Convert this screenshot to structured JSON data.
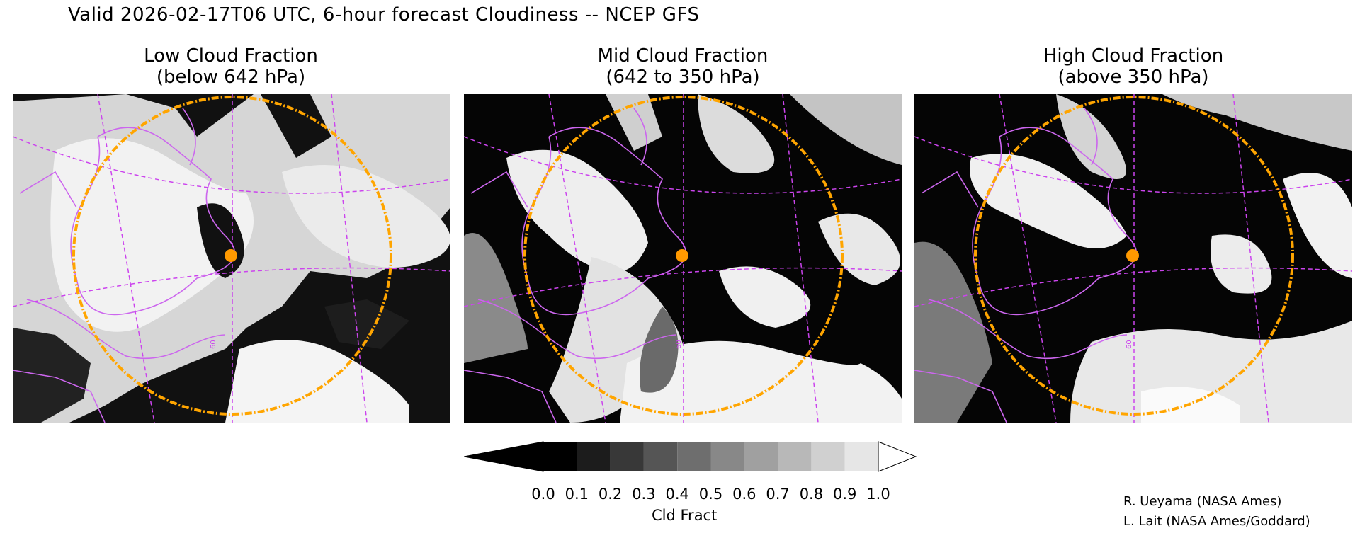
{
  "title": "Valid 2026-02-17T06 UTC, 6-hour forecast Cloudiness -- NCEP GFS",
  "panels": [
    {
      "line1": "Low Cloud Fraction",
      "line2": "(below 642 hPa)"
    },
    {
      "line1": "Mid Cloud Fraction",
      "line2": "(642 to 350 hPa)"
    },
    {
      "line1": "High Cloud Fraction",
      "line2": "(above 350 hPa)"
    }
  ],
  "grid_labels": [
    "60",
    "60",
    "60"
  ],
  "colorbar": {
    "units": "Cld Fract",
    "ticks": [
      "0.0",
      "0.1",
      "0.2",
      "0.3",
      "0.4",
      "0.5",
      "0.6",
      "0.7",
      "0.8",
      "0.9",
      "1.0"
    ],
    "colors": [
      "#000000",
      "#1c1c1c",
      "#383838",
      "#555555",
      "#6e6e6e",
      "#888888",
      "#a0a0a0",
      "#b8b8b8",
      "#d0d0d0",
      "#e6e6e6"
    ]
  },
  "credits": [
    "R. Ueyama (NASA Ames)",
    "L. Lait (NASA Ames/Goddard)"
  ],
  "colors": {
    "coastline": "#cc66ee",
    "range_ring": "#ffa500",
    "marker": "#ff9900"
  }
}
